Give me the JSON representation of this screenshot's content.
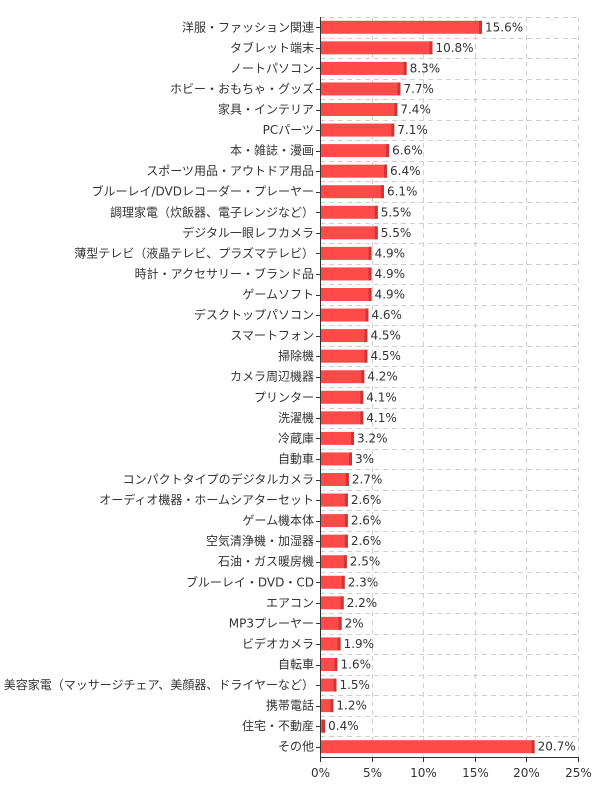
{
  "chart_data": {
    "type": "bar",
    "orientation": "horizontal",
    "title": "",
    "xlabel": "",
    "ylabel": "",
    "xlim": [
      0,
      25
    ],
    "grid": true,
    "bar_color": "#ff4a4a",
    "bar_shade_color": "#cc3636",
    "x_ticks": [
      "0%",
      "5%",
      "10%",
      "15%",
      "20%",
      "25%"
    ],
    "x_tick_values": [
      0,
      5,
      10,
      15,
      20,
      25
    ],
    "categories": [
      "洋服・ファッション関連",
      "タブレット端末",
      "ノートパソコン",
      "ホビー・おもちゃ・グッズ",
      "家具・インテリア",
      "PCパーツ",
      "本・雑誌・漫画",
      "スポーツ用品・アウトドア用品",
      "ブルーレイ/DVDレコーダー・プレーヤー",
      "調理家電（炊飯器、電子レンジなど）",
      "デジタル一眼レフカメラ",
      "薄型テレビ（液晶テレビ、プラズマテレビ）",
      "時計・アクセサリー・ブランド品",
      "ゲームソフト",
      "デスクトップパソコン",
      "スマートフォン",
      "掃除機",
      "カメラ周辺機器",
      "プリンター",
      "洗濯機",
      "冷蔵庫",
      "自動車",
      "コンパクトタイプのデジタルカメラ",
      "オーディオ機器・ホームシアターセット",
      "ゲーム機本体",
      "空気清浄機・加湿器",
      "石油・ガス暖房機",
      "ブルーレイ・DVD・CD",
      "エアコン",
      "MP3プレーヤー",
      "ビデオカメラ",
      "自転車",
      "健康・美容家電（マッサージチェア、美顔器、ドライヤーなど）",
      "携帯電話",
      "住宅・不動産",
      "その他"
    ],
    "values": [
      15.6,
      10.8,
      8.3,
      7.7,
      7.4,
      7.1,
      6.6,
      6.4,
      6.1,
      5.5,
      5.5,
      4.9,
      4.9,
      4.9,
      4.6,
      4.5,
      4.5,
      4.2,
      4.1,
      4.1,
      3.2,
      3,
      2.7,
      2.6,
      2.6,
      2.6,
      2.5,
      2.3,
      2.2,
      2,
      1.9,
      1.6,
      1.5,
      1.2,
      0.4,
      20.7
    ],
    "value_labels": [
      "15.6%",
      "10.8%",
      "8.3%",
      "7.7%",
      "7.4%",
      "7.1%",
      "6.6%",
      "6.4%",
      "6.1%",
      "5.5%",
      "5.5%",
      "4.9%",
      "4.9%",
      "4.9%",
      "4.6%",
      "4.5%",
      "4.5%",
      "4.2%",
      "4.1%",
      "4.1%",
      "3.2%",
      "3%",
      "2.7%",
      "2.6%",
      "2.6%",
      "2.6%",
      "2.5%",
      "2.3%",
      "2.2%",
      "2%",
      "1.9%",
      "1.6%",
      "1.5%",
      "1.2%",
      "0.4%",
      "20.7%"
    ]
  }
}
